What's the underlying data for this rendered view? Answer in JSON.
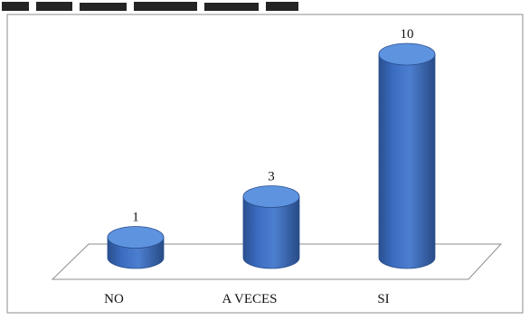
{
  "chart_data": {
    "type": "bar",
    "style": "3d-cylinder",
    "categories": [
      "NO",
      "A VECES",
      "SI"
    ],
    "values": [
      1,
      3,
      10
    ],
    "data_labels": [
      "1",
      "3",
      "10"
    ],
    "title": "",
    "xlabel": "",
    "ylabel": "",
    "ylim": [
      0,
      10
    ],
    "grid": false,
    "legend": "none",
    "colors": {
      "bar_body": "#3a6cc0",
      "bar_top": "#5d93df",
      "bar_edge": "#2a4f8e",
      "floor_stroke": "#8e8e8e",
      "frame_stroke": "#8e8e8e"
    }
  }
}
